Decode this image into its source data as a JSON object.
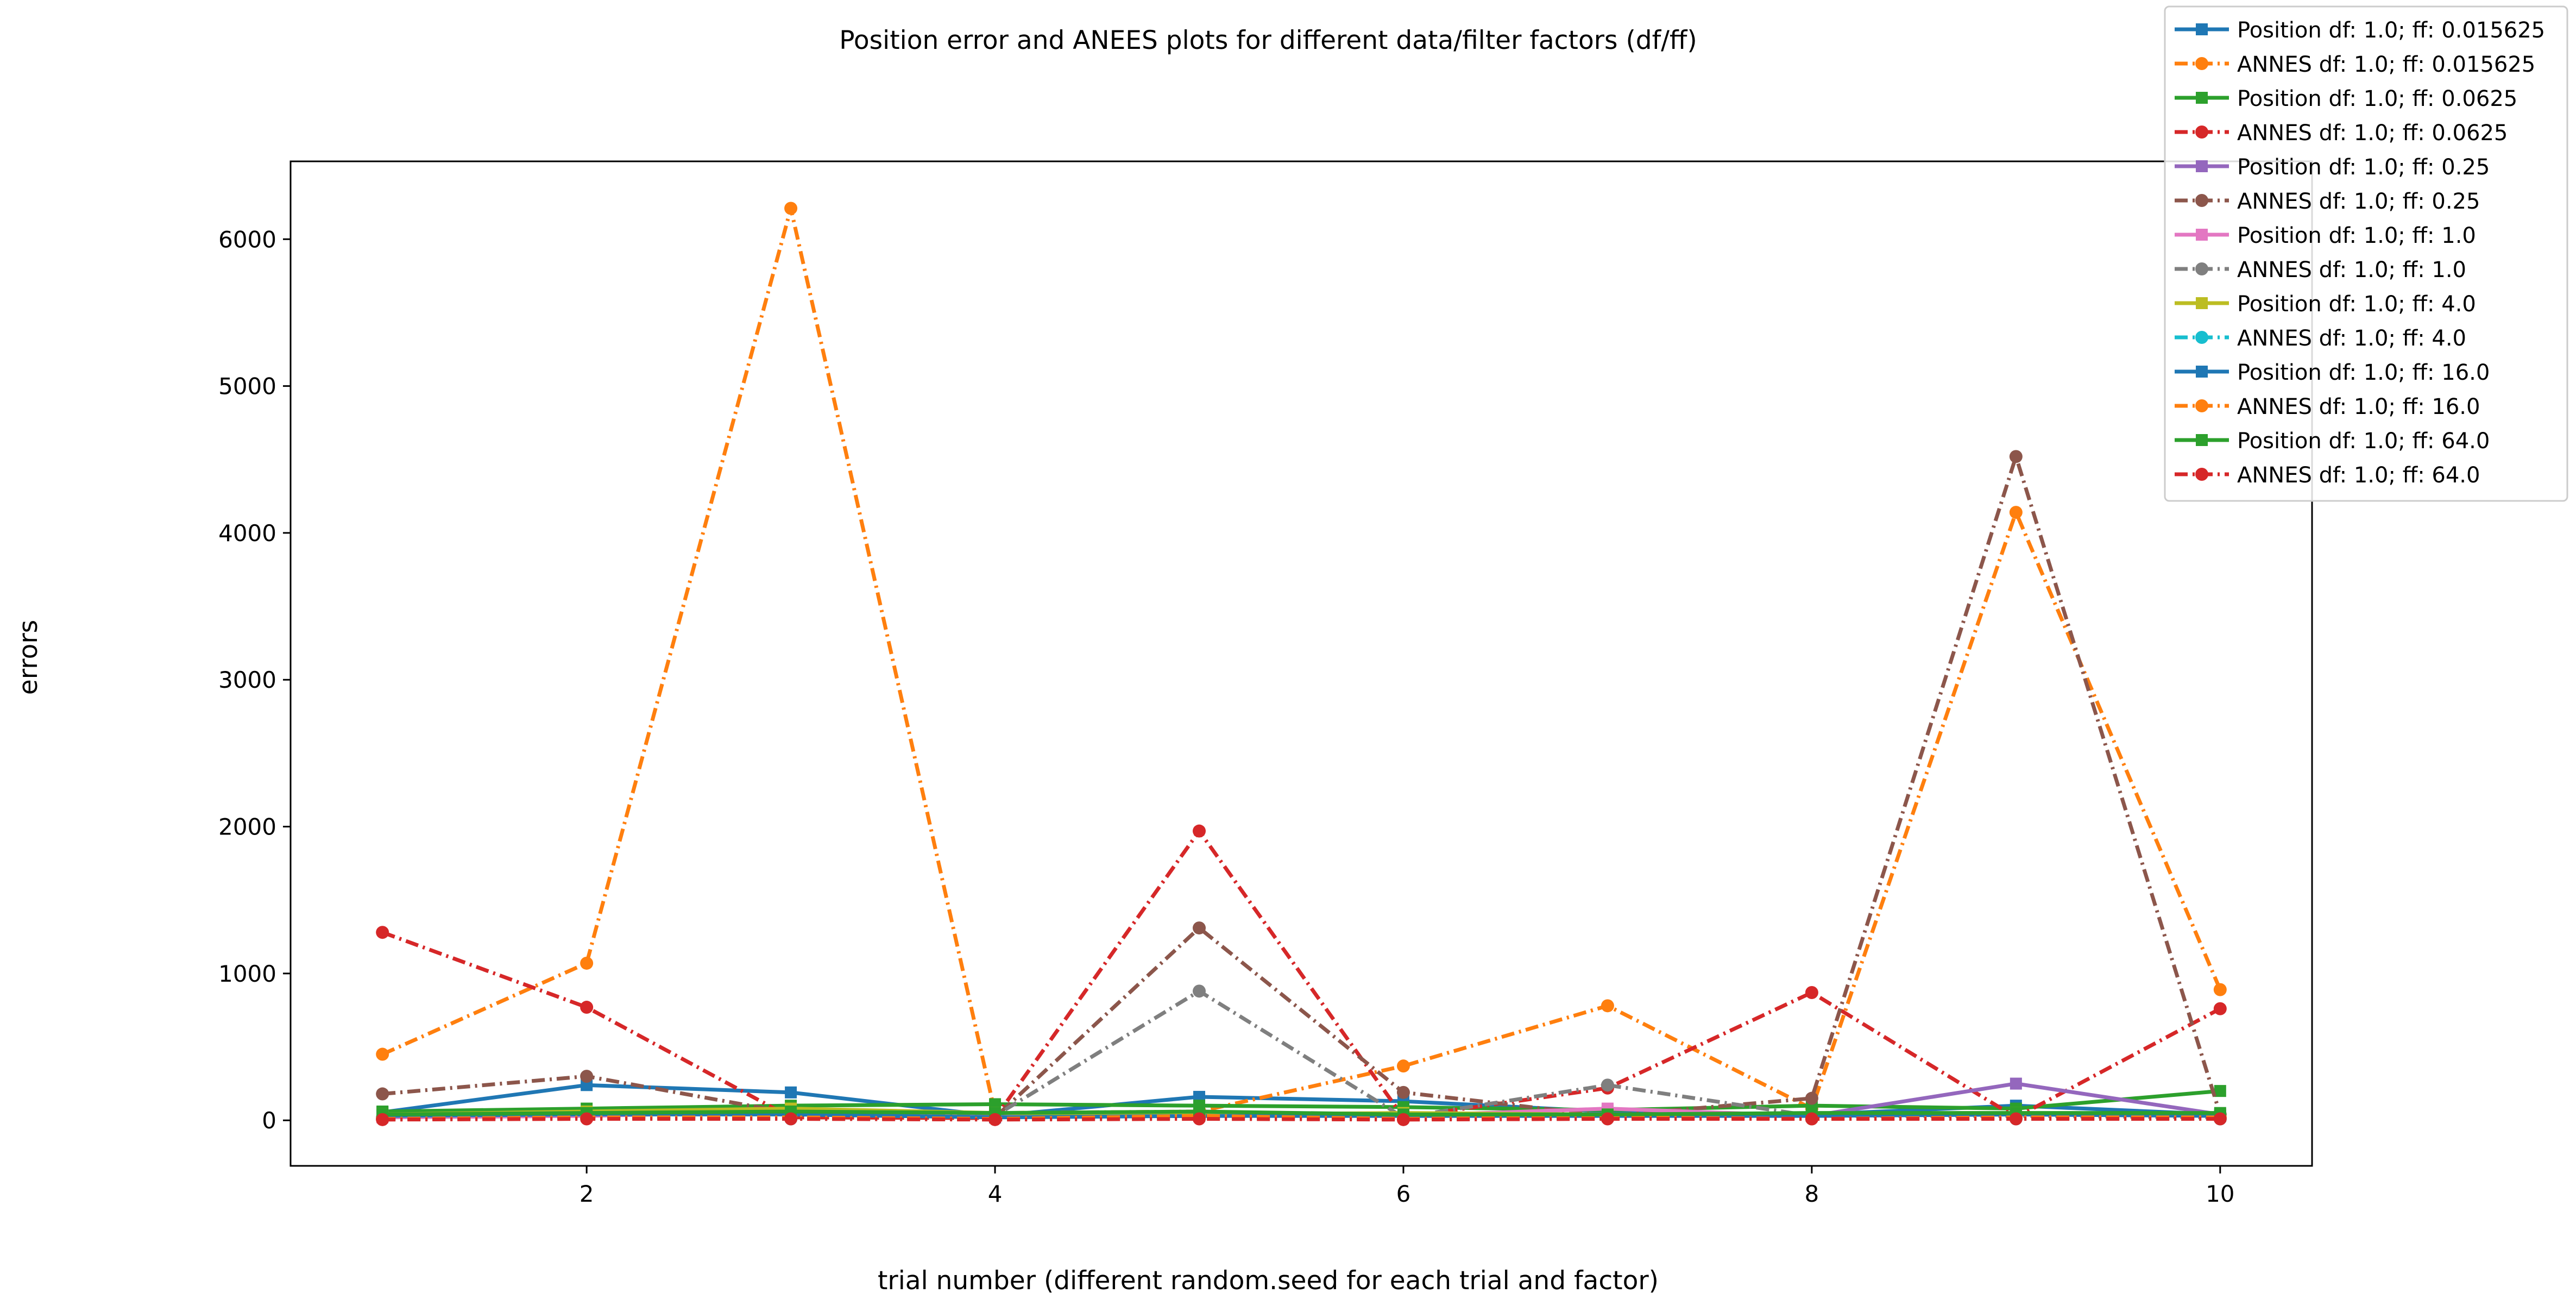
{
  "chart_data": {
    "type": "line",
    "title": "Position error and ANEES plots for different data/filter factors (df/ff)",
    "xlabel": "trial number (different random.seed for each trial and factor)",
    "ylabel": "errors",
    "xlim": [
      0.55,
      10.45
    ],
    "ylim": [
      -310,
      6530
    ],
    "xticks": [
      2,
      4,
      6,
      8,
      10
    ],
    "yticks": [
      0,
      1000,
      2000,
      3000,
      4000,
      5000,
      6000
    ],
    "grid": false,
    "legend_position": "top-right",
    "x": [
      1,
      2,
      3,
      4,
      5,
      6,
      7,
      8,
      9,
      10
    ],
    "series": [
      {
        "name": "Position df: 1.0; ff: 0.015625",
        "color": "#1f77b4",
        "style": "solid",
        "marker": "square",
        "values": [
          55,
          240,
          190,
          30,
          160,
          130,
          60,
          40,
          100,
          40
        ]
      },
      {
        "name": "ANNES df: 1.0; ff: 0.015625",
        "color": "#ff7f0e",
        "style": "dashdot",
        "marker": "circle",
        "values": [
          450,
          1070,
          6210,
          50,
          60,
          370,
          780,
          80,
          4140,
          890
        ]
      },
      {
        "name": "Position df: 1.0; ff: 0.0625",
        "color": "#2ca02c",
        "style": "solid",
        "marker": "square",
        "values": [
          60,
          80,
          100,
          110,
          100,
          90,
          70,
          100,
          80,
          200
        ]
      },
      {
        "name": "ANNES df: 1.0; ff: 0.0625",
        "color": "#d62728",
        "style": "dashdot",
        "marker": "circle",
        "values": [
          1280,
          770,
          20,
          15,
          1970,
          20,
          220,
          870,
          20,
          760
        ]
      },
      {
        "name": "Position df: 1.0; ff: 0.25",
        "color": "#9467bd",
        "style": "solid",
        "marker": "square",
        "values": [
          30,
          40,
          50,
          20,
          40,
          40,
          40,
          30,
          250,
          40
        ]
      },
      {
        "name": "ANNES df: 1.0; ff: 0.25",
        "color": "#8c564b",
        "style": "dashdot",
        "marker": "circle",
        "values": [
          180,
          300,
          50,
          20,
          1310,
          190,
          30,
          150,
          4520,
          40
        ]
      },
      {
        "name": "Position df: 1.0; ff: 1.0",
        "color": "#e377c2",
        "style": "solid",
        "marker": "square",
        "values": [
          20,
          30,
          60,
          20,
          60,
          30,
          80,
          30,
          40,
          30
        ]
      },
      {
        "name": "ANNES df: 1.0; ff: 1.0",
        "color": "#7f7f7f",
        "style": "dashdot",
        "marker": "circle",
        "values": [
          20,
          30,
          30,
          30,
          880,
          20,
          240,
          30,
          30,
          20
        ]
      },
      {
        "name": "Position df: 1.0; ff: 4.0",
        "color": "#bcbd22",
        "style": "solid",
        "marker": "square",
        "values": [
          40,
          60,
          80,
          50,
          40,
          50,
          40,
          40,
          50,
          40
        ]
      },
      {
        "name": "ANNES df: 1.0; ff: 4.0",
        "color": "#17becf",
        "style": "dashdot",
        "marker": "circle",
        "values": [
          10,
          20,
          10,
          10,
          20,
          10,
          20,
          10,
          10,
          10
        ]
      },
      {
        "name": "Position df: 1.0; ff: 16.0",
        "color": "#1f77b4",
        "style": "solid",
        "marker": "square",
        "values": [
          30,
          40,
          40,
          20,
          30,
          30,
          30,
          30,
          40,
          30
        ]
      },
      {
        "name": "ANNES df: 1.0; ff: 16.0",
        "color": "#ff7f0e",
        "style": "dashdot",
        "marker": "circle",
        "values": [
          10,
          20,
          20,
          10,
          30,
          10,
          20,
          10,
          20,
          20
        ]
      },
      {
        "name": "Position df: 1.0; ff: 64.0",
        "color": "#2ca02c",
        "style": "solid",
        "marker": "square",
        "values": [
          40,
          50,
          60,
          50,
          60,
          40,
          40,
          50,
          50,
          50
        ]
      },
      {
        "name": "ANNES df: 1.0; ff: 64.0",
        "color": "#d62728",
        "style": "dashdot",
        "marker": "circle",
        "values": [
          5,
          10,
          10,
          5,
          10,
          5,
          10,
          10,
          10,
          10
        ]
      }
    ]
  }
}
